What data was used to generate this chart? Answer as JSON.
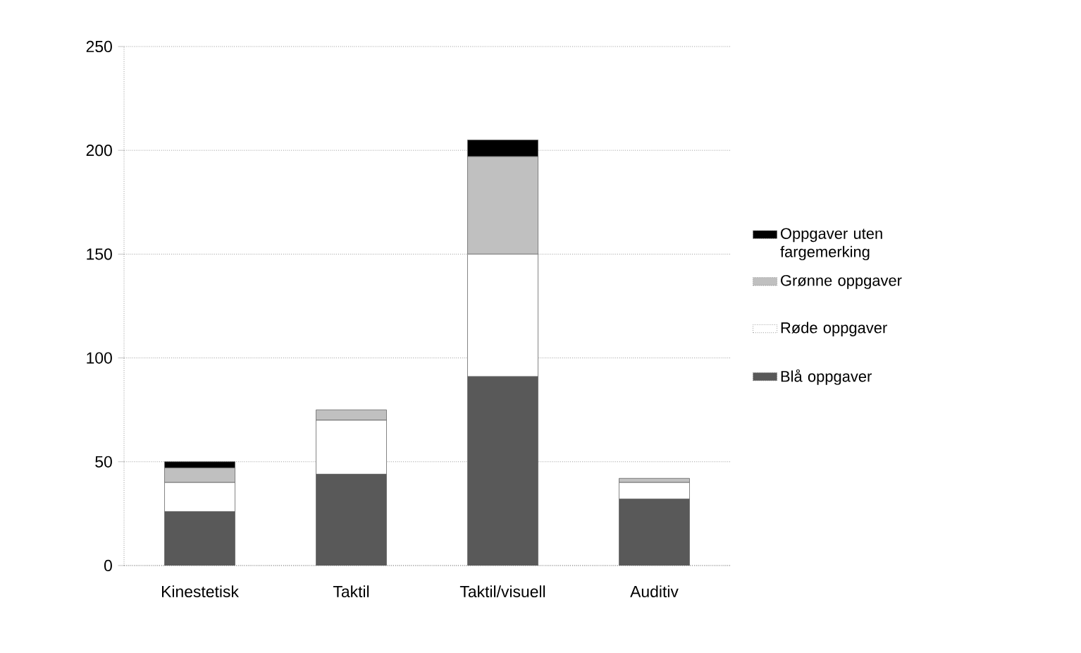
{
  "chart_data": {
    "type": "bar",
    "stacked": true,
    "categories": [
      "Kinestetisk",
      "Taktil",
      "Taktil/visuell",
      "Auditiv"
    ],
    "series": [
      {
        "name": "Blå oppgaver",
        "color": "#595959",
        "values": [
          26,
          44,
          91,
          32
        ]
      },
      {
        "name": "Røde oppgaver",
        "color": "#ffffff",
        "values": [
          14,
          26,
          59,
          8
        ]
      },
      {
        "name": "Grønne oppgaver",
        "color": "#c0c0c0",
        "values": [
          7,
          5,
          47,
          2
        ]
      },
      {
        "name": "Oppgaver uten fargemerking",
        "color": "#000000",
        "values": [
          3,
          0,
          8,
          0
        ]
      }
    ],
    "ylim": [
      0,
      250
    ],
    "yticks": [
      0,
      50,
      100,
      150,
      200,
      250
    ],
    "grid": "y",
    "legend": "right"
  }
}
